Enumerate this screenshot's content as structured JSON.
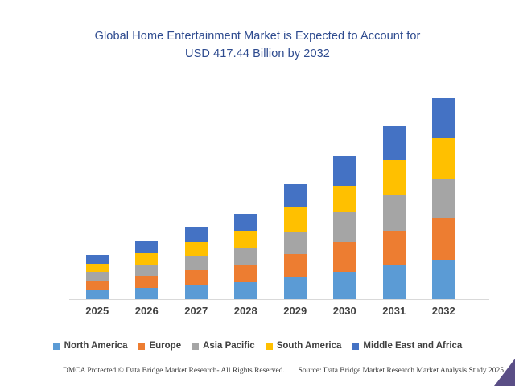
{
  "title": {
    "line1": "Global Home Entertainment Market is Expected to Account for",
    "line2": "USD 417.44 Billion by 2032"
  },
  "footer": {
    "left": "DMCA Protected © Data Bridge Market Research-  All Rights Reserved.",
    "right": "Source: Data Bridge Market Research  Market Analysis Study 2025"
  },
  "colors": {
    "title_text": "#2E4B8F",
    "axis_label": "#404040",
    "axis_line": "#D9D9D9",
    "corner_triangle": "#5A4E86"
  },
  "chart_data": {
    "type": "bar",
    "stacked": true,
    "title": "Global Home Entertainment Market is Expected to Account for USD 417.44 Billion by 2032",
    "unit": "USD Billion",
    "categories": [
      "2025",
      "2026",
      "2027",
      "2028",
      "2029",
      "2030",
      "2031",
      "2032"
    ],
    "series": [
      {
        "name": "North America",
        "color": "#5B9BD5",
        "values": [
          18.9,
          24.1,
          30.1,
          35.7,
          45.7,
          56.9,
          70.8,
          82.6
        ]
      },
      {
        "name": "Europe",
        "color": "#ED7D31",
        "values": [
          20.1,
          25.1,
          29.5,
          36.8,
          47.4,
          61.3,
          70.8,
          85.9
        ]
      },
      {
        "name": "Asia Pacific",
        "color": "#A5A5A5",
        "values": [
          17.9,
          23.4,
          30.8,
          34.7,
          47.5,
          61.4,
          75.3,
          82.5
        ]
      },
      {
        "name": "South America",
        "color": "#FFC000",
        "values": [
          16.7,
          23.9,
          29.0,
          34.5,
          50.2,
          55.7,
          71.5,
          82.7
        ]
      },
      {
        "name": "Middle East and Africa",
        "color": "#4472C4",
        "values": [
          17.9,
          23.9,
          31.3,
          35.2,
          47.4,
          62.6,
          70.8,
          83.7
        ]
      }
    ],
    "totals": [
      91.5,
      120.4,
      150.7,
      176.9,
      238.2,
      297.9,
      359.2,
      417.44
    ],
    "ylim": [
      0,
      417.44
    ],
    "grid": false,
    "y_axis_visible": false,
    "legend_position": "bottom"
  }
}
